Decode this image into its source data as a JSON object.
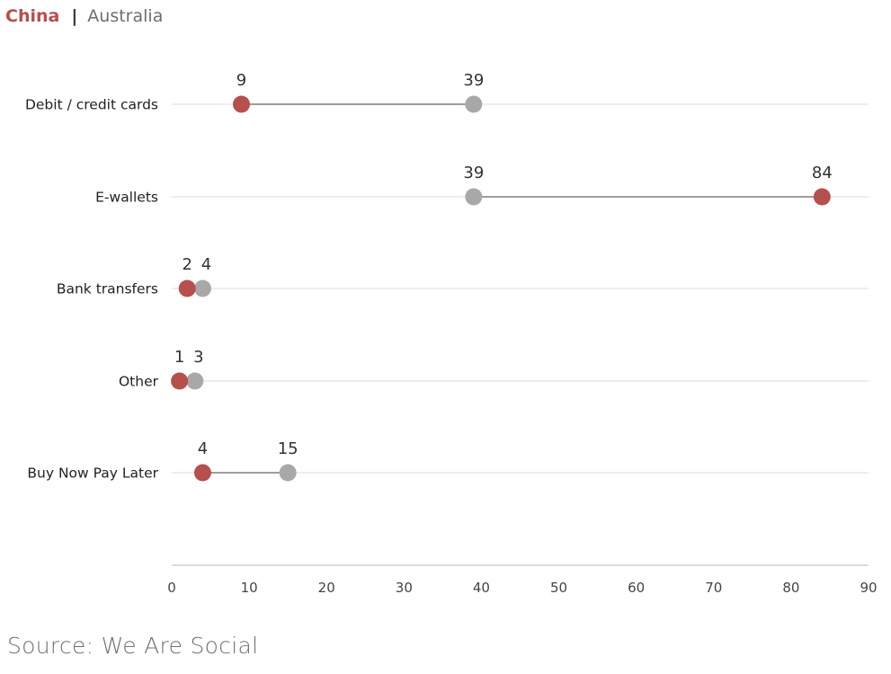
{
  "legend": {
    "series_a": "China",
    "separator": "|",
    "series_b": "Australia"
  },
  "source": "Source: We Are Social",
  "colors": {
    "China": "#b5504c",
    "Australia": "#a8a8a8",
    "connector": "#7f7f7f",
    "gridline": "#e2e2e2",
    "axis": "#d0d0d0"
  },
  "chart_data": {
    "type": "dumbbell",
    "categories": [
      "Debit / credit cards",
      "E-wallets",
      "Bank transfers",
      "Other",
      "Buy Now Pay Later"
    ],
    "series": [
      {
        "name": "China",
        "values": [
          9,
          84,
          2,
          1,
          4
        ]
      },
      {
        "name": "Australia",
        "values": [
          39,
          39,
          4,
          3,
          15
        ]
      }
    ],
    "xlim": [
      0,
      90
    ],
    "xticks": [
      0,
      10,
      20,
      30,
      40,
      50,
      60,
      70,
      80,
      90
    ],
    "grid": "horizontal per category",
    "legend": "top-left"
  }
}
